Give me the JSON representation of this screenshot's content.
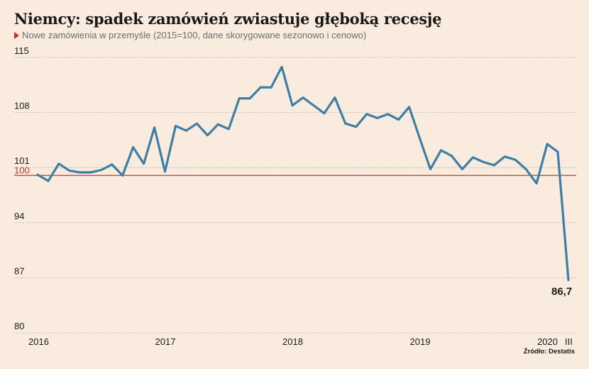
{
  "title": "Niemcy: spadek zamówień zwiastuje głęboką recesję",
  "subtitle": "Nowe zamówienia w przemyśle (2015=100, dane skorygowane sezonowo i cenowo)",
  "source": "Źródło: Destatis",
  "colors": {
    "line": "#3d7ea6",
    "reference": "#c0392b",
    "grid": "#9a9a9a",
    "background": "#f9ecdf",
    "marker": "#d62b1e"
  },
  "chart_data": {
    "type": "line",
    "ylim": [
      80,
      115
    ],
    "y_ticks": [
      {
        "value": 80,
        "label": "80"
      },
      {
        "value": 87,
        "label": "87"
      },
      {
        "value": 94,
        "label": "94"
      },
      {
        "value": 101,
        "label": "101"
      },
      {
        "value": 108,
        "label": "108"
      },
      {
        "value": 115,
        "label": "115"
      }
    ],
    "reference_line": {
      "value": 100,
      "label": "100"
    },
    "x_ticks": [
      {
        "label": "2016",
        "index": 0
      },
      {
        "label": "2017",
        "index": 12
      },
      {
        "label": "2018",
        "index": 24
      },
      {
        "label": "2019",
        "index": 36
      },
      {
        "label": "2020",
        "index": 48
      },
      {
        "label": "III",
        "index": 50
      }
    ],
    "x": [
      "2016-01",
      "2016-02",
      "2016-03",
      "2016-04",
      "2016-05",
      "2016-06",
      "2016-07",
      "2016-08",
      "2016-09",
      "2016-10",
      "2016-11",
      "2016-12",
      "2017-01",
      "2017-02",
      "2017-03",
      "2017-04",
      "2017-05",
      "2017-06",
      "2017-07",
      "2017-08",
      "2017-09",
      "2017-10",
      "2017-11",
      "2017-12",
      "2018-01",
      "2018-02",
      "2018-03",
      "2018-04",
      "2018-05",
      "2018-06",
      "2018-07",
      "2018-08",
      "2018-09",
      "2018-10",
      "2018-11",
      "2018-12",
      "2019-01",
      "2019-02",
      "2019-03",
      "2019-04",
      "2019-05",
      "2019-06",
      "2019-07",
      "2019-08",
      "2019-09",
      "2019-10",
      "2019-11",
      "2019-12",
      "2020-01",
      "2020-02",
      "2020-03"
    ],
    "series": [
      {
        "values": [
          100.1,
          99.3,
          101.5,
          100.6,
          100.4,
          100.4,
          100.7,
          101.4,
          100.0,
          103.6,
          101.5,
          106.1,
          100.5,
          106.3,
          105.7,
          106.6,
          105.1,
          106.5,
          105.9,
          109.8,
          109.8,
          111.2,
          111.2,
          113.8,
          108.9,
          109.9,
          108.9,
          107.9,
          109.9,
          106.6,
          106.2,
          107.8,
          107.3,
          107.8,
          107.1,
          108.7,
          104.7,
          100.8,
          103.2,
          102.5,
          100.8,
          102.3,
          101.7,
          101.3,
          102.4,
          102.0,
          100.8,
          99.0,
          104.0,
          103.0,
          86.7
        ]
      }
    ],
    "end_label": "86,7"
  }
}
